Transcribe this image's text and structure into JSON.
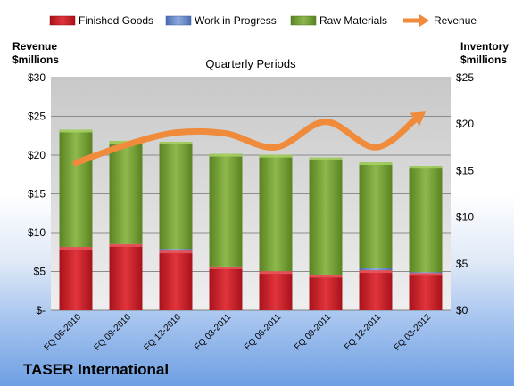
{
  "company": "TASER International",
  "chart_data": {
    "type": "bar",
    "subtitle": "Quarterly Periods",
    "left_axis_title": [
      "Revenue",
      "$millions"
    ],
    "right_axis_title": [
      "Inventory",
      "$millions"
    ],
    "categories": [
      "FQ 06-2010",
      "FQ 09-2010",
      "FQ 12-2010",
      "FQ 03-2011",
      "FQ 06-2011",
      "FQ 09-2011",
      "FQ 12-2011",
      "FQ 03-2012"
    ],
    "left_ticks": [
      "$-",
      "$5",
      "$10",
      "$15",
      "$20",
      "$25",
      "$30"
    ],
    "right_ticks": [
      "$0",
      "$5",
      "$10",
      "$15",
      "$20",
      "$25"
    ],
    "left_ylim": [
      0,
      30
    ],
    "right_ylim": [
      0,
      25
    ],
    "stacked": true,
    "grid": true,
    "legend_position": "top",
    "series": [
      {
        "name": "Finished Goods",
        "axis": "right",
        "type": "bar",
        "color": "#d0202a",
        "values": [
          6.8,
          7.1,
          6.4,
          4.7,
          4.2,
          3.8,
          4.3,
          4.0
        ]
      },
      {
        "name": "Work in Progress",
        "axis": "right",
        "type": "bar",
        "color": "#6f8fd1",
        "values": [
          0.0,
          0.0,
          0.2,
          0.0,
          0.0,
          0.0,
          0.2,
          0.1
        ]
      },
      {
        "name": "Raw Materials",
        "axis": "right",
        "type": "bar",
        "color": "#7aa33a",
        "values": [
          12.6,
          11.1,
          11.5,
          12.1,
          12.5,
          12.6,
          11.4,
          11.4
        ]
      },
      {
        "name": "Revenue",
        "axis": "left",
        "type": "line",
        "color": "#ef8b3b",
        "values": [
          19.0,
          21.3,
          22.9,
          22.8,
          21.0,
          24.3,
          21.0,
          25.6
        ]
      }
    ]
  }
}
